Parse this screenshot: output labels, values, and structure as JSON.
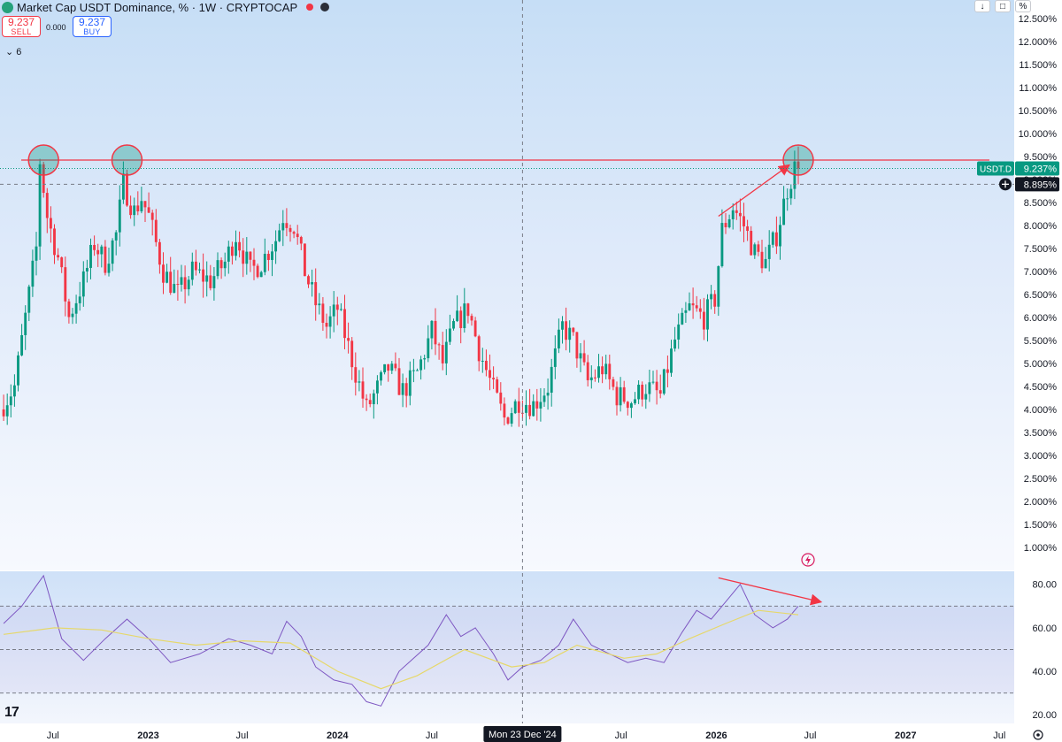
{
  "header": {
    "title": "Market Cap USDT Dominance, % · 1W · CRYPTOCAP",
    "sell_price": "9.237",
    "sell_label": "SELL",
    "buy_price": "9.237",
    "buy_label": "BUY",
    "spread": "0.000",
    "indicator_count": "6",
    "logo_icon": "tether-logo-icon",
    "colors": {
      "up": "#089981",
      "down": "#f23645",
      "accent": "#2962ff"
    }
  },
  "toolbar": {
    "down_icon": "arrow-down-icon",
    "bracket_icon": "bracket-icon",
    "percent_label": "%"
  },
  "chart_data": {
    "type": "candlestick",
    "symbol": "USDT.D",
    "price_label": "9.237%",
    "cursor_price_label": "8.895%",
    "cursor_date_label": "Mon 23 Dec '24",
    "y_unit": "%",
    "ylim": [
      0.5,
      12.9
    ],
    "y_ticks": [
      "12.500%",
      "12.000%",
      "11.500%",
      "11.000%",
      "10.500%",
      "10.000%",
      "9.500%",
      "9.000%",
      "8.500%",
      "8.000%",
      "7.500%",
      "7.000%",
      "6.500%",
      "6.000%",
      "5.500%",
      "5.000%",
      "4.500%",
      "4.000%",
      "3.500%",
      "3.000%",
      "2.500%",
      "2.000%",
      "1.500%",
      "1.000%"
    ],
    "x_ticks": [
      "Jul",
      "2023",
      "Jul",
      "2024",
      "Jul",
      "Jul",
      "2026",
      "Jul",
      "2027",
      "Jul"
    ],
    "resistance_level": 9.42,
    "path": [
      [
        "2022-03-28",
        4.0
      ],
      [
        "2022-04-25",
        4.5
      ],
      [
        "2022-05-16",
        6.0
      ],
      [
        "2022-06-06",
        7.5
      ],
      [
        "2022-06-13",
        9.4
      ],
      [
        "2022-06-27",
        8.2
      ],
      [
        "2022-07-18",
        7.3
      ],
      [
        "2022-08-08",
        6.0
      ],
      [
        "2022-09-05",
        6.8
      ],
      [
        "2022-09-26",
        7.6
      ],
      [
        "2022-10-17",
        7.2
      ],
      [
        "2022-11-07",
        7.8
      ],
      [
        "2022-11-21",
        8.9
      ],
      [
        "2022-12-12",
        8.3
      ],
      [
        "2022-12-26",
        8.6
      ],
      [
        "2023-01-09",
        8.2
      ],
      [
        "2023-02-06",
        7.0
      ],
      [
        "2023-03-06",
        6.5
      ],
      [
        "2023-04-03",
        7.0
      ],
      [
        "2023-05-08",
        6.8
      ],
      [
        "2023-06-05",
        7.2
      ],
      [
        "2023-06-26",
        7.8
      ],
      [
        "2023-07-24",
        7.0
      ],
      [
        "2023-08-14",
        7.2
      ],
      [
        "2023-09-11",
        7.7
      ],
      [
        "2023-09-25",
        8.2
      ],
      [
        "2023-10-16",
        8.0
      ],
      [
        "2023-11-06",
        7.0
      ],
      [
        "2023-11-27",
        6.3
      ],
      [
        "2023-12-18",
        5.8
      ],
      [
        "2024-01-08",
        6.2
      ],
      [
        "2024-02-12",
        4.8
      ],
      [
        "2024-03-04",
        4.0
      ],
      [
        "2024-03-18",
        4.3
      ],
      [
        "2024-04-15",
        4.9
      ],
      [
        "2024-05-13",
        4.4
      ],
      [
        "2024-06-10",
        4.8
      ],
      [
        "2024-07-08",
        5.7
      ],
      [
        "2024-07-29",
        5.0
      ],
      [
        "2024-08-19",
        5.8
      ],
      [
        "2024-09-16",
        6.2
      ],
      [
        "2024-10-07",
        5.3
      ],
      [
        "2024-11-04",
        4.4
      ],
      [
        "2024-11-25",
        3.8
      ],
      [
        "2024-12-23",
        4.2
      ],
      [
        "2025-01-20",
        4.1
      ],
      [
        "2025-02-17",
        4.5
      ],
      [
        "2025-03-17",
        5.8
      ],
      [
        "2025-04-07",
        5.5
      ],
      [
        "2025-05-05",
        4.6
      ],
      [
        "2025-06-02",
        4.9
      ],
      [
        "2025-06-30",
        4.3
      ],
      [
        "2025-07-28",
        4.2
      ],
      [
        "2025-08-25",
        4.5
      ],
      [
        "2025-09-22",
        4.3
      ],
      [
        "2025-10-20",
        5.5
      ],
      [
        "2025-11-17",
        6.2
      ],
      [
        "2025-12-15",
        6.0
      ],
      [
        "2026-01-05",
        6.4
      ],
      [
        "2026-01-19",
        7.9
      ],
      [
        "2026-02-09",
        8.4
      ],
      [
        "2026-03-02",
        8.0
      ],
      [
        "2026-03-23",
        7.4
      ],
      [
        "2026-04-13",
        7.2
      ],
      [
        "2026-05-04",
        7.8
      ],
      [
        "2026-05-25",
        8.8
      ],
      [
        "2026-06-08",
        9.24
      ]
    ],
    "rsi": {
      "ticks": [
        "80.00",
        "60.00",
        "40.00",
        "20.00"
      ],
      "levels": [
        70,
        50,
        30
      ],
      "ylim": [
        16,
        86
      ],
      "path": [
        [
          "2022-03-28",
          62
        ],
        [
          "2022-05-02",
          70
        ],
        [
          "2022-06-13",
          84
        ],
        [
          "2022-07-18",
          55
        ],
        [
          "2022-08-29",
          45
        ],
        [
          "2022-10-10",
          55
        ],
        [
          "2022-11-21",
          64
        ],
        [
          "2023-01-02",
          55
        ],
        [
          "2023-02-13",
          44
        ],
        [
          "2023-04-10",
          48
        ],
        [
          "2023-06-05",
          55
        ],
        [
          "2023-07-17",
          52
        ],
        [
          "2023-08-28",
          48
        ],
        [
          "2023-09-25",
          63
        ],
        [
          "2023-10-23",
          56
        ],
        [
          "2023-11-20",
          42
        ],
        [
          "2023-12-25",
          36
        ],
        [
          "2024-01-29",
          34
        ],
        [
          "2024-02-26",
          26
        ],
        [
          "2024-03-25",
          24
        ],
        [
          "2024-04-29",
          40
        ],
        [
          "2024-05-27",
          46
        ],
        [
          "2024-06-24",
          52
        ],
        [
          "2024-07-29",
          66
        ],
        [
          "2024-08-26",
          56
        ],
        [
          "2024-09-23",
          60
        ],
        [
          "2024-10-28",
          48
        ],
        [
          "2024-11-25",
          36
        ],
        [
          "2024-12-23",
          42
        ],
        [
          "2025-01-27",
          45
        ],
        [
          "2025-03-03",
          52
        ],
        [
          "2025-03-31",
          64
        ],
        [
          "2025-05-05",
          52
        ],
        [
          "2025-06-09",
          48
        ],
        [
          "2025-07-14",
          44
        ],
        [
          "2025-08-18",
          46
        ],
        [
          "2025-09-22",
          44
        ],
        [
          "2025-10-27",
          58
        ],
        [
          "2025-11-24",
          68
        ],
        [
          "2025-12-22",
          64
        ],
        [
          "2026-01-19",
          72
        ],
        [
          "2026-02-16",
          80
        ],
        [
          "2026-03-16",
          66
        ],
        [
          "2026-04-20",
          60
        ],
        [
          "2026-05-18",
          64
        ],
        [
          "2026-06-08",
          70
        ]
      ],
      "ma_path": [
        [
          "2022-03-28",
          57
        ],
        [
          "2022-07-04",
          60
        ],
        [
          "2022-10-03",
          59
        ],
        [
          "2023-01-02",
          55
        ],
        [
          "2023-04-03",
          52
        ],
        [
          "2023-07-03",
          54
        ],
        [
          "2023-10-02",
          53
        ],
        [
          "2024-01-01",
          40
        ],
        [
          "2024-03-25",
          32
        ],
        [
          "2024-06-03",
          38
        ],
        [
          "2024-09-02",
          50
        ],
        [
          "2024-12-02",
          42
        ],
        [
          "2025-02-03",
          44
        ],
        [
          "2025-04-07",
          52
        ],
        [
          "2025-07-07",
          46
        ],
        [
          "2025-09-08",
          48
        ],
        [
          "2025-11-10",
          55
        ],
        [
          "2026-01-19",
          62
        ],
        [
          "2026-03-23",
          68
        ],
        [
          "2026-06-08",
          66
        ]
      ]
    }
  }
}
